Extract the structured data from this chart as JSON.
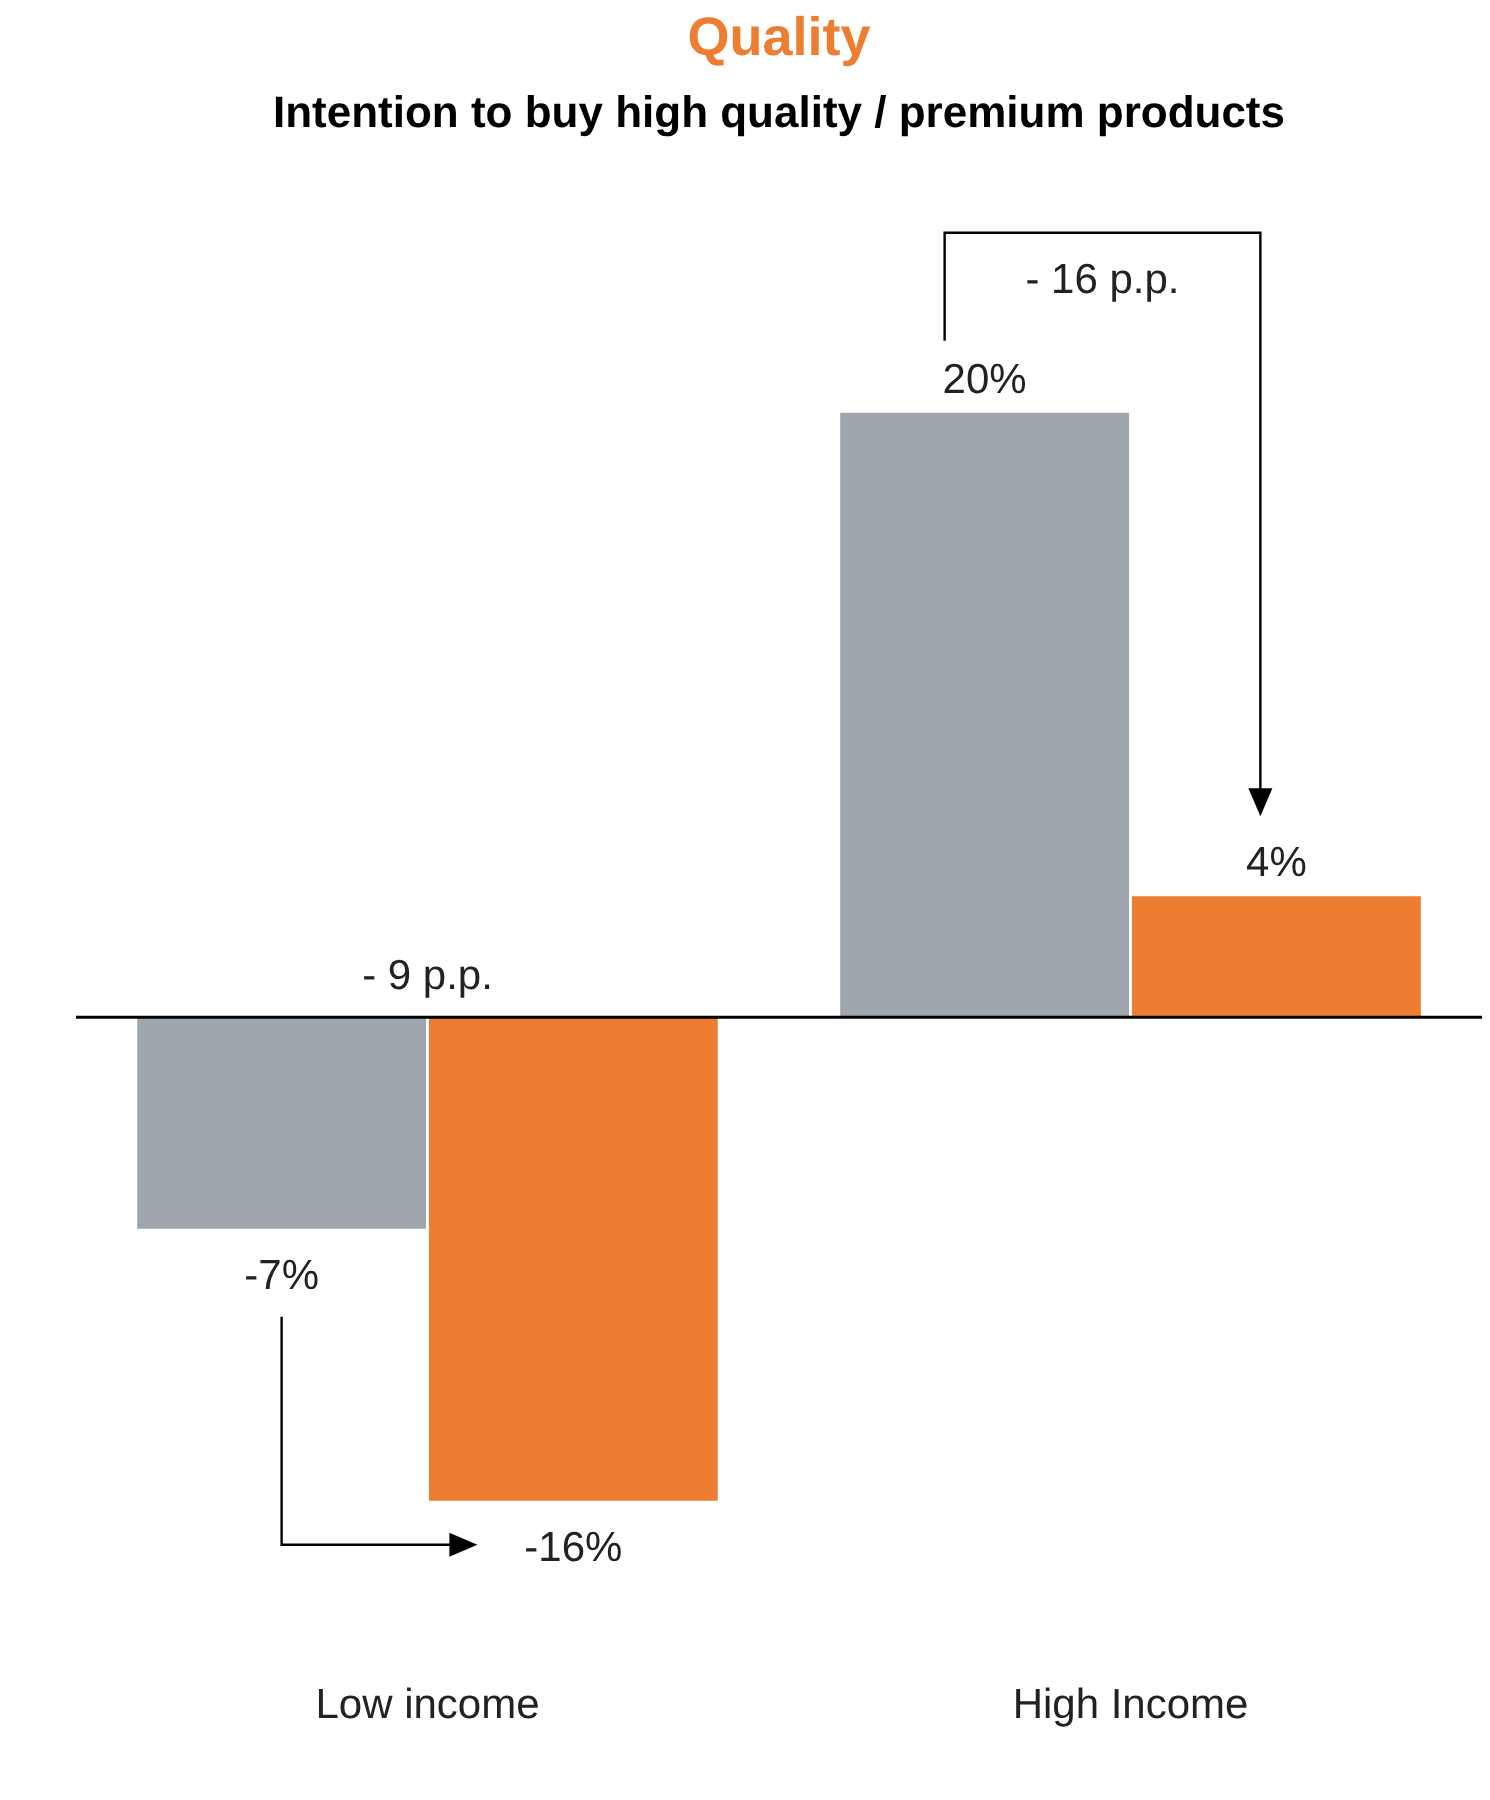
{
  "chart_data": {
    "type": "bar",
    "title": "Quality",
    "subtitle": "Intention to buy high quality / premium products",
    "categories": [
      "Low income",
      "High Income"
    ],
    "series": [
      {
        "color": "#a0a6ad",
        "values": [
          -7,
          20
        ],
        "value_labels": [
          "-7%",
          "20%"
        ]
      },
      {
        "color": "#ed7d31",
        "values": [
          -16,
          4
        ],
        "value_labels": [
          "-16%",
          "4%"
        ]
      }
    ],
    "annotations": [
      "- 9 p.p.",
      "- 16 p.p."
    ],
    "grid": false,
    "legend": false
  }
}
